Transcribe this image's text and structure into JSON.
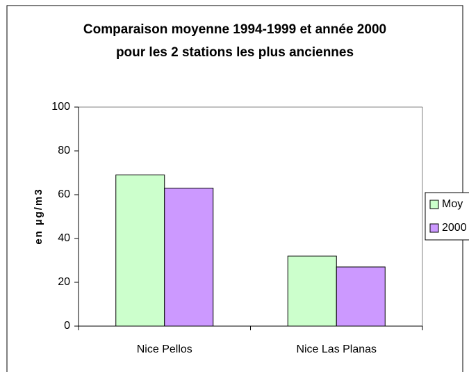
{
  "chart_data": {
    "type": "bar",
    "title": [
      "Comparaison moyenne 1994-1999 et année 2000",
      "pour les 2 stations les plus anciennes"
    ],
    "y_label": "en µg/m3",
    "categories": [
      "Nice Pellos",
      "Nice Las Planas"
    ],
    "series": [
      {
        "name": "Moy",
        "color": "#ccffcc",
        "values": [
          69,
          32
        ]
      },
      {
        "name": "2000",
        "color": "#cc99ff",
        "values": [
          63,
          27
        ]
      }
    ],
    "ylim": [
      0,
      100
    ],
    "yticks": [
      0,
      20,
      40,
      60,
      80,
      100
    ],
    "grid": false,
    "legend": "right"
  }
}
